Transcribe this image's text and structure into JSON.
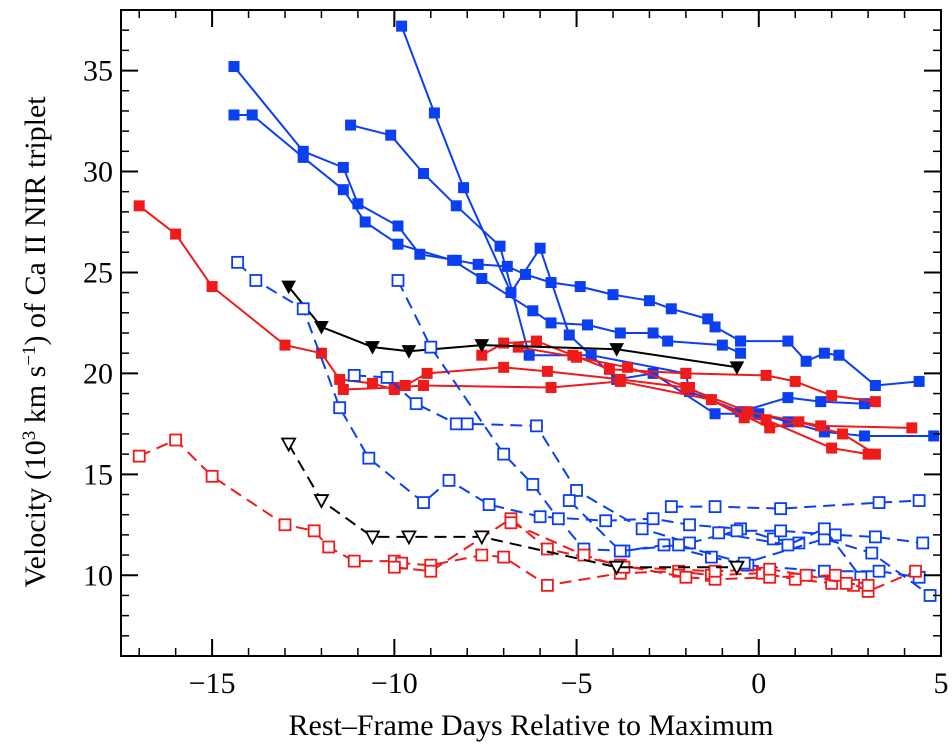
{
  "chart_data": {
    "type": "line",
    "xlabel": "Rest–Frame Days Relative to Maximum",
    "ylabel": {
      "t1": "Velocity (10",
      "sup1": "3",
      "t2": " km s",
      "sup2": "−1",
      "t3": ") of Ca II NIR triplet"
    },
    "xlim": [
      -17.5,
      5
    ],
    "ylim": [
      6,
      38
    ],
    "x_ticks": [
      -15,
      -10,
      -5,
      0,
      5
    ],
    "x_tick_labels": [
      "−15",
      "−10",
      "−5",
      "0",
      "5"
    ],
    "y_ticks": [
      10,
      15,
      20,
      25,
      30,
      35
    ],
    "y_tick_labels": [
      "10",
      "15",
      "20",
      "25",
      "30",
      "35"
    ],
    "colors": {
      "blue": "#0b3ff2",
      "red": "#ef1a1a",
      "black": "#000000"
    },
    "series": [
      {
        "color": "blue",
        "dash": false,
        "marker": "square-filled",
        "x": [
          -14.4,
          -12.5,
          -11.4,
          -11.0,
          -9.9,
          -9.3,
          -8.3,
          -7.7,
          -6.9,
          -6.4,
          -5.7,
          -4.9,
          -4.0,
          -3.0,
          -2.4,
          -1.4,
          -1.2,
          -0.5
        ],
        "y": [
          35.2,
          31.0,
          30.2,
          28.4,
          27.3,
          25.9,
          25.6,
          25.4,
          25.3,
          24.9,
          24.5,
          24.3,
          23.9,
          23.6,
          23.2,
          22.7,
          22.3,
          21.6
        ]
      },
      {
        "color": "blue",
        "dash": false,
        "marker": "square-filled",
        "x": [
          -14.4,
          -13.9,
          -12.5,
          -11.4,
          -10.8,
          -9.9,
          -8.4,
          -7.6,
          -6.2,
          -5.7,
          -4.7,
          -3.8,
          -2.9,
          -2.5,
          -1.0,
          -0.5
        ],
        "y": [
          32.8,
          32.8,
          30.7,
          29.1,
          27.5,
          26.4,
          25.6,
          24.7,
          23.1,
          22.5,
          22.4,
          22.0,
          22.0,
          21.6,
          21.4,
          21.0
        ]
      },
      {
        "color": "blue",
        "dash": false,
        "marker": "square-filled",
        "x": [
          -11.2,
          -10.1,
          -9.2,
          -8.3,
          -7.1,
          -6.3,
          -4.6,
          -2.0,
          -1.9,
          -0.5,
          0.8,
          1.7,
          2.9
        ],
        "y": [
          32.3,
          31.8,
          29.9,
          28.3,
          26.3,
          20.9,
          20.9,
          20.0,
          19.1,
          18.1,
          18.8,
          18.6,
          18.5
        ]
      },
      {
        "color": "blue",
        "dash": false,
        "marker": "square-filled",
        "x": [
          -9.8,
          -8.9,
          -8.1,
          -6.8,
          -6.0,
          -5.2,
          -3.9,
          -2.9,
          -1.2,
          0.0,
          0.8,
          1.8,
          2.9,
          4.8
        ],
        "y": [
          37.2,
          32.9,
          29.2,
          24.0,
          26.2,
          21.9,
          19.7,
          20.0,
          18.0,
          18.0,
          17.6,
          17.1,
          16.9,
          16.9
        ]
      },
      {
        "color": "blue",
        "dash": false,
        "marker": "square-filled",
        "x": [
          -0.5,
          0.8,
          1.3,
          1.8,
          2.2,
          3.2,
          4.4
        ],
        "y": [
          21.6,
          21.6,
          20.6,
          21.0,
          20.9,
          19.4,
          19.6
        ]
      },
      {
        "color": "red",
        "dash": false,
        "marker": "square-filled",
        "x": [
          -17.0,
          -16.0,
          -15.0,
          -13.0,
          -12.0,
          -11.5,
          -10.6,
          -10.0,
          -9.7,
          -9.1,
          -7.0,
          -5.8,
          -3.8,
          -2.0,
          -0.3,
          1.7,
          4.2
        ],
        "y": [
          28.3,
          26.9,
          24.3,
          21.4,
          21.0,
          19.7,
          19.5,
          19.2,
          19.4,
          20.0,
          20.3,
          20.1,
          19.7,
          19.3,
          18.1,
          17.4,
          17.3
        ]
      },
      {
        "color": "red",
        "dash": false,
        "marker": "square-filled",
        "x": [
          -11.4,
          -10.0,
          -9.2,
          -5.7,
          -3.8,
          -1.3,
          0.3,
          1.1,
          2.3,
          3.2
        ],
        "y": [
          19.2,
          19.3,
          19.4,
          19.3,
          19.6,
          18.7,
          17.3,
          17.6,
          17.0,
          16.0
        ]
      },
      {
        "color": "red",
        "dash": false,
        "marker": "square-filled",
        "x": [
          -7.6,
          -7.0,
          -6.1,
          -5.1,
          -4.1,
          -2.0,
          0.2,
          1.0,
          2.0,
          3.2
        ],
        "y": [
          20.9,
          21.5,
          21.6,
          20.9,
          20.2,
          20.0,
          19.9,
          19.6,
          18.9,
          18.6
        ]
      },
      {
        "color": "red",
        "dash": false,
        "marker": "square-filled",
        "x": [
          -6.6,
          -5.0,
          -3.6,
          -1.9,
          -0.4,
          0.2,
          2.0,
          3.0
        ],
        "y": [
          21.3,
          20.8,
          20.3,
          19.3,
          17.8,
          17.7,
          16.3,
          16.0
        ]
      },
      {
        "color": "black",
        "dash": false,
        "marker": "triangle-down-filled",
        "x": [
          -12.9,
          -12.0,
          -10.6,
          -9.6,
          -7.6,
          -3.9,
          -0.6
        ],
        "y": [
          24.3,
          22.3,
          21.3,
          21.1,
          21.4,
          21.2,
          20.3
        ]
      },
      {
        "color": "blue",
        "dash": true,
        "marker": "square-open",
        "x": [
          -14.3,
          -13.8,
          -12.5,
          -11.5,
          -10.7,
          -9.2,
          -8.5,
          -7.4,
          -6.0,
          -4.2,
          -2.9,
          -1.9,
          -0.5,
          0.4,
          1.1
        ],
        "y": [
          25.5,
          24.6,
          23.2,
          18.3,
          15.8,
          13.6,
          14.7,
          13.5,
          12.9,
          12.7,
          12.8,
          12.5,
          12.3,
          11.8,
          11.6
        ]
      },
      {
        "color": "blue",
        "dash": true,
        "marker": "square-open",
        "x": [
          -11.1,
          -10.2,
          -9.4,
          -8.3,
          -8.0,
          -6.1,
          -5.0,
          -3.2,
          -1.9,
          -0.6,
          0.6,
          2.1,
          3.2,
          4.5
        ],
        "y": [
          19.9,
          19.8,
          18.5,
          17.5,
          17.5,
          17.4,
          14.2,
          12.3,
          11.6,
          12.2,
          12.2,
          12.0,
          11.9,
          11.6
        ]
      },
      {
        "color": "blue",
        "dash": true,
        "marker": "square-open",
        "x": [
          -9.9,
          -9.0,
          -7.0,
          -6.2,
          -5.5,
          -4.8,
          -3.7,
          -2.6,
          -1.3,
          -0.3,
          1.8,
          3.3,
          4.4
        ],
        "y": [
          24.6,
          21.3,
          16.0,
          14.5,
          12.8,
          11.3,
          11.2,
          11.5,
          10.9,
          10.5,
          10.2,
          10.2,
          9.9
        ]
      },
      {
        "color": "blue",
        "dash": true,
        "marker": "square-open",
        "x": [
          -5.2,
          -3.8,
          -2.2,
          -0.4,
          1.8,
          3.1,
          4.7
        ],
        "y": [
          13.7,
          11.2,
          11.5,
          10.6,
          11.8,
          11.1,
          9.0
        ]
      },
      {
        "color": "blue",
        "dash": true,
        "marker": "square-open",
        "x": [
          -1.1,
          0.8,
          1.8,
          2.8
        ],
        "y": [
          12.1,
          11.5,
          12.3,
          9.9
        ]
      },
      {
        "color": "blue",
        "dash": true,
        "marker": "square-open",
        "x": [
          -2.4,
          -1.2,
          0.6,
          3.3,
          4.4
        ],
        "y": [
          13.4,
          13.4,
          13.3,
          13.6,
          13.7
        ]
      },
      {
        "color": "red",
        "dash": true,
        "marker": "square-open",
        "x": [
          -17.0,
          -16.0,
          -15.0,
          -13.0,
          -12.2,
          -11.8,
          -11.1,
          -10.0,
          -9.8,
          -9.0,
          -7.6,
          -7.0,
          -5.8,
          -3.8,
          -2.2,
          -1.3,
          0.1,
          1.0,
          2.0,
          2.6
        ],
        "y": [
          15.9,
          16.7,
          14.9,
          12.5,
          12.2,
          11.4,
          10.7,
          10.7,
          10.6,
          10.5,
          11.0,
          10.9,
          9.5,
          10.1,
          10.2,
          10.0,
          10.1,
          9.8,
          9.6,
          9.5
        ]
      },
      {
        "color": "red",
        "dash": true,
        "marker": "square-open",
        "x": [
          -10.0,
          -9.0,
          -6.8,
          -5.8,
          -3.8,
          -2.0,
          -1.2,
          0.3,
          2.1,
          3.0,
          4.3
        ],
        "y": [
          10.4,
          10.2,
          12.8,
          11.3,
          10.5,
          9.9,
          9.8,
          9.9,
          10.0,
          9.2,
          10.2
        ]
      },
      {
        "color": "red",
        "dash": true,
        "marker": "square-open",
        "x": [
          -6.8,
          -4.8,
          -3.7,
          -1.2,
          0.3,
          1.3,
          2.4,
          3.0
        ],
        "y": [
          12.6,
          11.0,
          10.4,
          10.2,
          10.3,
          10.0,
          9.6,
          9.5
        ]
      },
      {
        "color": "black",
        "dash": true,
        "marker": "triangle-down-open",
        "x": [
          -12.9,
          -12.0,
          -10.6,
          -9.6,
          -7.6,
          -3.9,
          -0.6
        ],
        "y": [
          16.5,
          13.7,
          11.9,
          11.9,
          11.9,
          10.4,
          10.4
        ]
      }
    ]
  }
}
